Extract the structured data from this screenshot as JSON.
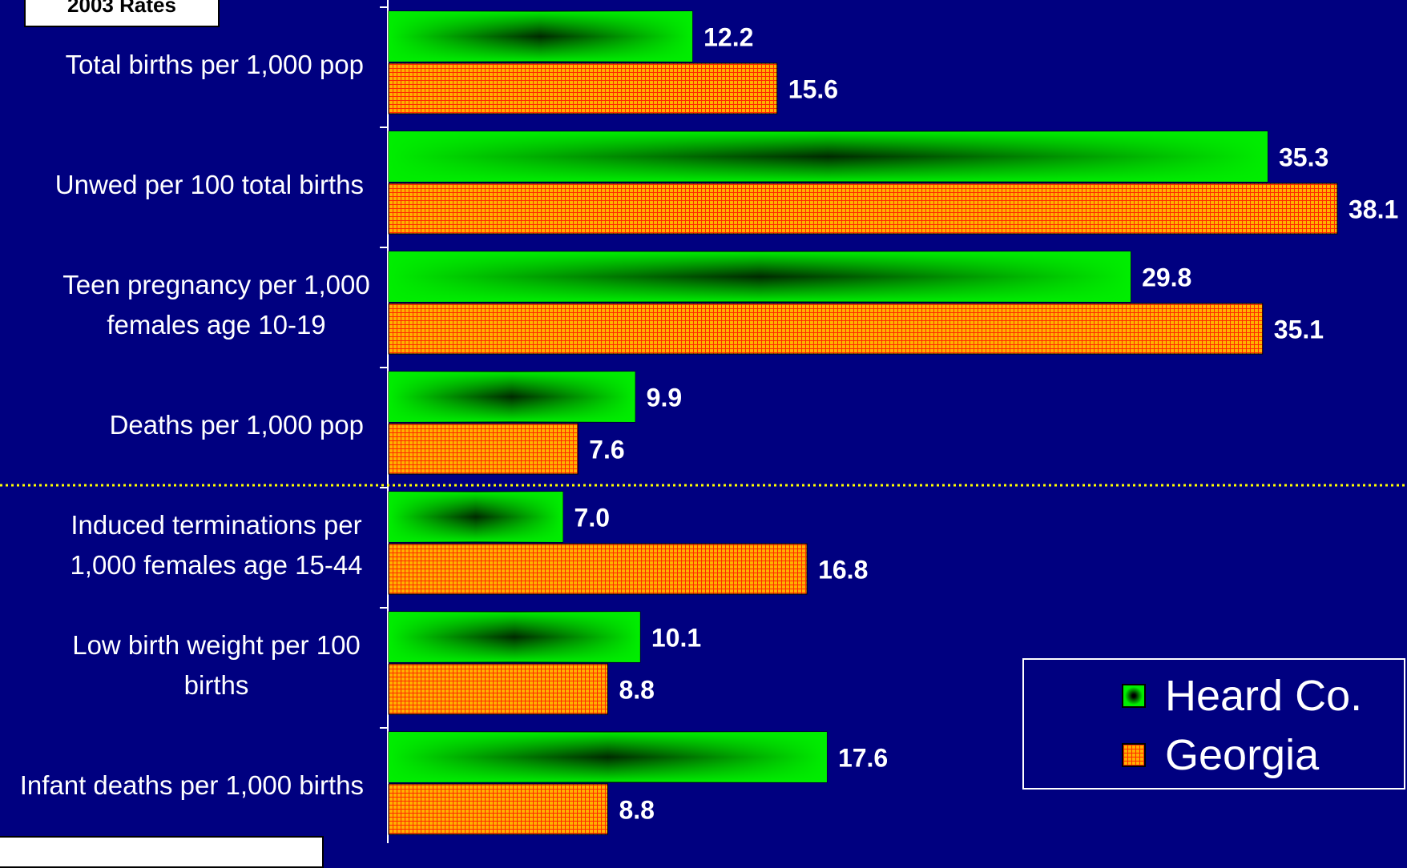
{
  "header": {
    "title": "2003 Rates"
  },
  "chart_data": {
    "type": "bar",
    "orientation": "horizontal",
    "categories": [
      "Total births per 1,000 pop",
      "Unwed per 100 total births",
      "Teen pregnancy per 1,000 females age 10-19",
      "Deaths per 1,000 pop",
      "Induced terminations per 1,000 females age 15-44",
      "Low birth weight per 100 births",
      "Infant deaths per 1,000 births"
    ],
    "category_lines": [
      [
        "Total births per 1,000 pop"
      ],
      [
        "Unwed per 100 total births"
      ],
      [
        "Teen pregnancy per 1,000",
        "females age 10-19"
      ],
      [
        "Deaths per 1,000 pop"
      ],
      [
        "Induced terminations per",
        "1,000 females age 15-44"
      ],
      [
        "Low birth weight per 100",
        "births"
      ],
      [
        "Infant deaths per 1,000 births"
      ]
    ],
    "series": [
      {
        "name": "Heard Co.",
        "values": [
          12.2,
          35.3,
          29.8,
          9.9,
          7.0,
          10.1,
          17.6
        ],
        "labels": [
          "12.2",
          "35.3",
          "29.8",
          "9.9",
          "7.0",
          "10.1",
          "17.6"
        ],
        "color": "#00ee00"
      },
      {
        "name": "Georgia",
        "values": [
          15.6,
          38.1,
          35.1,
          7.6,
          16.8,
          8.8,
          8.8
        ],
        "labels": [
          "15.6",
          "38.1",
          "35.1",
          "7.6",
          "16.8",
          "8.8",
          "8.8"
        ],
        "color": "#ffb000"
      }
    ],
    "xlim": [
      0,
      38.1
    ],
    "legend_position": "bottom-right",
    "separator_after_category": 3,
    "colors": {
      "background": "#000080",
      "text": "#ffffff",
      "separator": "#ffff00",
      "hatch": "#ff2a00"
    }
  },
  "legend": {
    "items": [
      "Heard Co.",
      "Georgia"
    ]
  }
}
